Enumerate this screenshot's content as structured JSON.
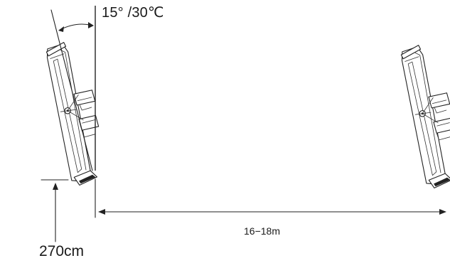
{
  "diagram": {
    "angle_label": "15°  /30℃",
    "distance_label": "16−18m",
    "height_label": "270cm"
  }
}
